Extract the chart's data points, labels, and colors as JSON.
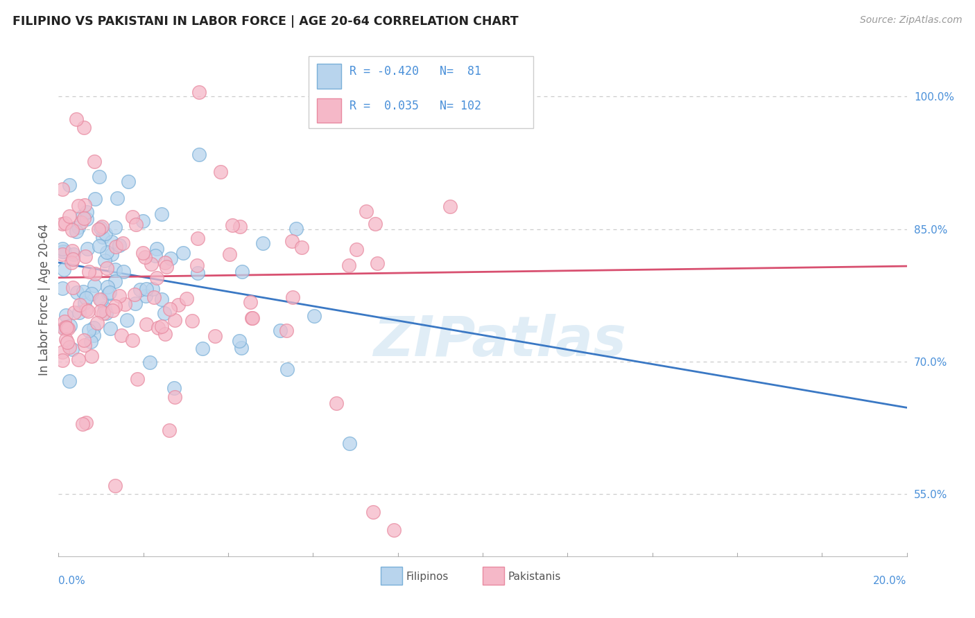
{
  "title": "FILIPINO VS PAKISTANI IN LABOR FORCE | AGE 20-64 CORRELATION CHART",
  "source": "Source: ZipAtlas.com",
  "ylabel": "In Labor Force | Age 20-64",
  "watermark": "ZIPatlas",
  "legend_filipino_R": -0.42,
  "legend_filipino_N": 81,
  "legend_pakistani_R": 0.035,
  "legend_pakistani_N": 102,
  "filipino_fill": "#b8d4ed",
  "pakistani_fill": "#f5b8c8",
  "filipino_edge": "#7ab0d8",
  "pakistani_edge": "#e88aa0",
  "filipino_line_color": "#3a78c4",
  "pakistani_line_color": "#d85070",
  "legend_text_color": "#4a90d9",
  "background_color": "#ffffff",
  "xlim": [
    0.0,
    0.2
  ],
  "ylim": [
    0.48,
    1.06
  ],
  "right_yticks": [
    0.55,
    0.7,
    0.85,
    1.0
  ],
  "right_yticklabels": [
    "55.0%",
    "70.0%",
    "85.0%",
    "100.0%"
  ],
  "filipino_trendline_x": [
    0.0,
    0.2
  ],
  "filipino_trendline_y": [
    0.812,
    0.648
  ],
  "pakistani_trendline_x": [
    0.0,
    0.2
  ],
  "pakistani_trendline_y": [
    0.795,
    0.808
  ]
}
